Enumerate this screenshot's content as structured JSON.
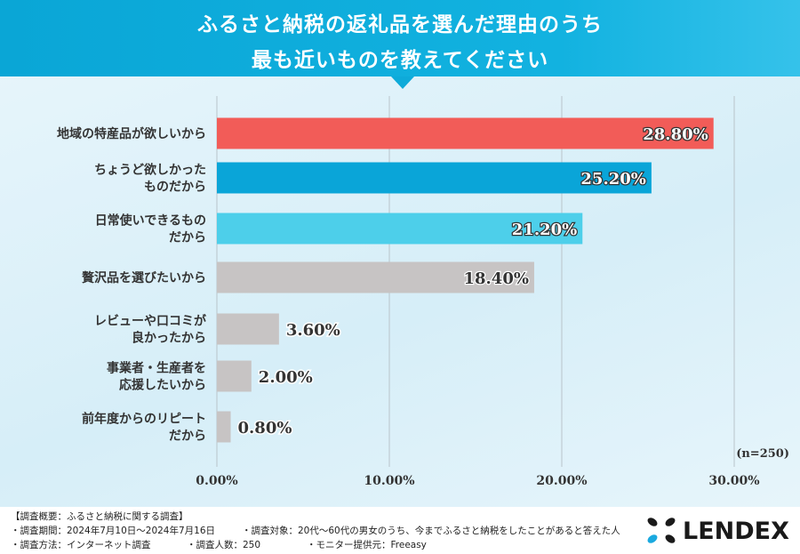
{
  "title_lines": [
    "ふるさと納税の返礼品を選んだ理由のうち",
    "最も近いものを教えてください"
  ],
  "chart_data": {
    "type": "bar",
    "orientation": "horizontal",
    "categories": [
      [
        "地域の特産品が欲しいから"
      ],
      [
        "ちょうど欲しかった",
        "ものだから"
      ],
      [
        "日常使いできるもの",
        "だから"
      ],
      [
        "贅沢品を選びたいから"
      ],
      [
        "レビューや口コミが",
        "良かったから"
      ],
      [
        "事業者・生産者を",
        "応援したいから"
      ],
      [
        "前年度からのリピート",
        "だから"
      ]
    ],
    "values": [
      28.8,
      25.2,
      21.2,
      18.4,
      3.6,
      2.0,
      0.8
    ],
    "data_labels": [
      "28.80%",
      "25.20%",
      "21.20%",
      "18.40%",
      "3.60%",
      "2.00%",
      "0.80%"
    ],
    "bar_colors": [
      "#f25c58",
      "#0aa5d8",
      "#4dcfea",
      "#c7c4c4",
      "#c7c4c4",
      "#c7c4c4",
      "#c7c4c4"
    ],
    "xlim": [
      0,
      30
    ],
    "x_ticks": [
      0,
      10,
      20,
      30
    ],
    "x_tick_labels": [
      "0.00%",
      "10.00%",
      "20.00%",
      "30.00%"
    ],
    "grid": true,
    "note": "(n=250)"
  },
  "footer": {
    "summary": "【調査概要：ふるさと納税に関する調査】",
    "line2a": "・調査期間：2024年7月10日〜2024年7月16日",
    "line2b": "・調査対象：20代〜60代の男女のうち、今までふるさと納税をしたことがあると答えた人",
    "line3a": "・調査方法：インターネット調査",
    "line3b": "・調査人数：250",
    "line3c": "・モニター提供元：Freeasy"
  },
  "logo": {
    "text": "LENDEX",
    "colors": [
      "#1a1a1a",
      "#1aa9df"
    ]
  }
}
